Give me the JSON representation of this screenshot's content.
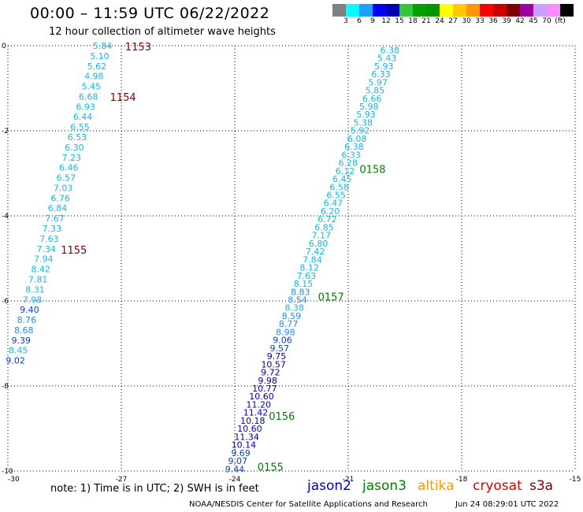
{
  "header": {
    "title": "00:00  –  11:59 UTC 06/22/2022",
    "subtitle": "12 hour collection of altimeter wave heights"
  },
  "legend": {
    "colors": [
      "#808080",
      "#00ffff",
      "#1ea0ff",
      "#0000ff",
      "#0000b4",
      "#32c832",
      "#00a000",
      "#009600",
      "#ffff00",
      "#ffc800",
      "#ff9600",
      "#ff0000",
      "#c80000",
      "#800000",
      "#a000a0",
      "#c8a0ff",
      "#ff8cff",
      "#000000"
    ],
    "labels": [
      "3",
      "6",
      "9",
      "12",
      "15",
      "18",
      "21",
      "24",
      "27",
      "30",
      "33",
      "36",
      "39",
      "42",
      "45",
      "70",
      "(ft)"
    ]
  },
  "chart_data": {
    "type": "scatter",
    "xlim": [
      -30,
      -15
    ],
    "ylim": [
      -10,
      0
    ],
    "x_ticks": [
      "-30",
      "-27",
      "-24",
      "-21",
      "-18",
      "-15"
    ],
    "y_ticks": [
      "0",
      "-2",
      "-4",
      "-6",
      "-8",
      "-10"
    ],
    "grid": true,
    "track_west": {
      "values": [
        "5.84",
        "5.10",
        "5.62",
        "4.98",
        "5.45",
        "6.68",
        "6.93",
        "6.44",
        "6.55",
        "6.53",
        "6.30",
        "7.23",
        "6.46",
        "6.57",
        "7.03",
        "6.76",
        "6.84",
        "7.67",
        "7.33",
        "7.63",
        "7.34",
        "7.94",
        "8.42",
        "7.81",
        "8.31",
        "7.98",
        "9.40",
        "8.76",
        "8.68",
        "9.39",
        "8.45",
        "9.02"
      ],
      "x_start": -27.5,
      "x_end": -29.8,
      "y_start": 0,
      "y_end": -7.4
    },
    "track_east": {
      "values": [
        "9.44",
        "9.07",
        "9.69",
        "10.14",
        "11.34",
        "10.60",
        "10.18",
        "11.42",
        "11.20",
        "10.60",
        "10.77",
        "9.98",
        "9.72",
        "10.57",
        "9.75",
        "9.57",
        "9.06",
        "8.98",
        "8.77",
        "8.59",
        "8.38",
        "8.54",
        "8.83",
        "8.15",
        "7.63",
        "8.12",
        "7.84",
        "7.42",
        "6.80",
        "7.17",
        "6.85",
        "6.72",
        "6.20",
        "6.47",
        "6.55",
        "6.58",
        "6.45",
        "6.12",
        "6.28",
        "6.33",
        "6.38",
        "6.08",
        "5.92",
        "5.38",
        "5.93",
        "5.98",
        "6.66",
        "5.85",
        "5.97",
        "6.33",
        "5.93",
        "5.43",
        "6.38"
      ],
      "x_start": -24.0,
      "x_end": -19.9,
      "y_start": -9.95,
      "y_end": -0.1
    },
    "time_labels": [
      {
        "text": "1153",
        "color": "#800000",
        "x": -26.9,
        "y": -0.02
      },
      {
        "text": "1154",
        "color": "#800000",
        "x": -27.3,
        "y": -1.2
      },
      {
        "text": "1155",
        "color": "#800000",
        "x": -28.6,
        "y": -4.8
      },
      {
        "text": "0158",
        "color": "#008000",
        "x": -20.7,
        "y": -2.9
      },
      {
        "text": "0157",
        "color": "#008000",
        "x": -21.8,
        "y": -5.9
      },
      {
        "text": "0156",
        "color": "#008000",
        "x": -23.1,
        "y": -8.7
      },
      {
        "text": "0155",
        "color": "#008000",
        "x": -23.4,
        "y": -9.9
      }
    ]
  },
  "footer": {
    "note": "note:  1) Time is in UTC;  2) SWH is in feet",
    "satellites": [
      {
        "name": "jason2",
        "color": "#0000cc"
      },
      {
        "name": "jason3",
        "color": "#008000"
      },
      {
        "name": "altika",
        "color": "#ff9900"
      },
      {
        "name": "cryosat",
        "color": "#dd0000"
      },
      {
        "name": "s3a",
        "color": "#800000"
      }
    ],
    "credit": "NOAA/NESDIS Center for Satellite Applications and Research",
    "timestamp": "Jun 24 08:29:01 UTC 2022"
  }
}
